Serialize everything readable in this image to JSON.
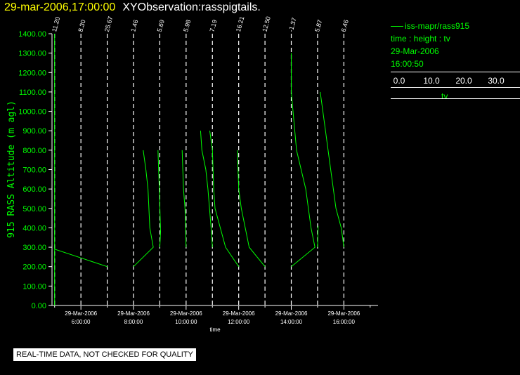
{
  "header": {
    "datetime": "29-mar-2006,17:00:00",
    "app_title": "XYObservation:rasspigtails."
  },
  "legend": {
    "series_label": "iss-mapr/rass915",
    "variables": "time : height : tv",
    "date": "29-Mar-2006",
    "time": "16:00:50",
    "scale_ticks": [
      "0.0",
      "10.0",
      "20.0",
      "30.0"
    ],
    "scale_unit": "tv"
  },
  "notice": "REAL-TIME DATA, NOT CHECKED FOR QUALITY",
  "colors": {
    "trace": "#00ff00",
    "axis": "#ffffff",
    "title": "#ffff00",
    "background": "#000000"
  },
  "chart_data": {
    "type": "line",
    "ylabel": "915 RASS Altitude (m agl)",
    "xlabel": "time",
    "ylim": [
      0,
      1400
    ],
    "y_ticks": [
      "0.00",
      "100.00",
      "200.00",
      "300.00",
      "400.00",
      "500.00",
      "600.00",
      "700.00",
      "800.00",
      "900.00",
      "1000.00",
      "1100.00",
      "1200.00",
      "1300.00",
      "1400.00"
    ],
    "xlim": [
      4.9,
      17.3
    ],
    "x_ticks": [
      {
        "hour": 6,
        "date": "29-Mar-2006",
        "time": "6:00:00"
      },
      {
        "hour": 8,
        "date": "29-Mar-2006",
        "time": "8:00:00"
      },
      {
        "hour": 10,
        "date": "29-Mar-2006",
        "time": "10:00:00"
      },
      {
        "hour": 12,
        "date": "29-Mar-2006",
        "time": "12:00:00"
      },
      {
        "hour": 14,
        "date": "29-Mar-2006",
        "time": "14:00:00"
      },
      {
        "hour": 16,
        "date": "29-Mar-2006",
        "time": "16:00:00"
      }
    ],
    "profiles": [
      {
        "hour": 5.0,
        "label": "11.20"
      },
      {
        "hour": 6.0,
        "label": "8.30"
      },
      {
        "hour": 7.0,
        "label": "25.67"
      },
      {
        "hour": 8.0,
        "label": "1.46"
      },
      {
        "hour": 9.0,
        "label": "5.69"
      },
      {
        "hour": 10.0,
        "label": "5.98"
      },
      {
        "hour": 11.0,
        "label": "7.19"
      },
      {
        "hour": 12.0,
        "label": "16.21"
      },
      {
        "hour": 13.0,
        "label": "12.50"
      },
      {
        "hour": 14.0,
        "label": "-1.37"
      },
      {
        "hour": 15.0,
        "label": "5.87"
      },
      {
        "hour": 16.0,
        "label": "6.46"
      }
    ],
    "series": [
      {
        "points": [
          [
            5.0,
            1400
          ],
          [
            5.0,
            0
          ],
          [
            5.0,
            290
          ],
          [
            7.0,
            200
          ]
        ]
      },
      {
        "points": [
          [
            8.0,
            200
          ],
          [
            8.75,
            300
          ],
          [
            8.62,
            400
          ],
          [
            8.55,
            600
          ],
          [
            8.47,
            700
          ],
          [
            8.37,
            800
          ]
        ]
      },
      {
        "points": [
          [
            9.0,
            300
          ],
          [
            9.03,
            380
          ],
          [
            8.98,
            600
          ],
          [
            8.93,
            800
          ]
        ]
      },
      {
        "points": [
          [
            10.0,
            300
          ],
          [
            9.96,
            500
          ],
          [
            9.9,
            600
          ],
          [
            9.85,
            800
          ]
        ]
      },
      {
        "points": [
          [
            11.0,
            300
          ],
          [
            10.95,
            400
          ],
          [
            10.83,
            600
          ],
          [
            10.75,
            700
          ],
          [
            10.6,
            800
          ],
          [
            10.55,
            900
          ]
        ]
      },
      {
        "points": [
          [
            12.0,
            200
          ],
          [
            11.5,
            300
          ],
          [
            11.1,
            500
          ],
          [
            11.05,
            600
          ],
          [
            11.0,
            800
          ],
          [
            10.9,
            900
          ]
        ]
      },
      {
        "points": [
          [
            13.0,
            200
          ],
          [
            12.4,
            300
          ],
          [
            12.1,
            500
          ],
          [
            12.0,
            600
          ],
          [
            11.95,
            800
          ]
        ]
      },
      {
        "points": [
          [
            14.0,
            200
          ],
          [
            14.9,
            300
          ],
          [
            14.75,
            400
          ],
          [
            14.55,
            600
          ],
          [
            14.2,
            800
          ],
          [
            14.0,
            1100
          ],
          [
            14.0,
            1300
          ]
        ]
      },
      {
        "points": [
          [
            15.0,
            300
          ],
          [
            15.02,
            410
          ]
        ]
      },
      {
        "points": [
          [
            16.0,
            300
          ],
          [
            15.9,
            400
          ],
          [
            15.7,
            500
          ],
          [
            15.5,
            700
          ],
          [
            15.3,
            900
          ],
          [
            15.1,
            1100
          ]
        ]
      }
    ]
  }
}
